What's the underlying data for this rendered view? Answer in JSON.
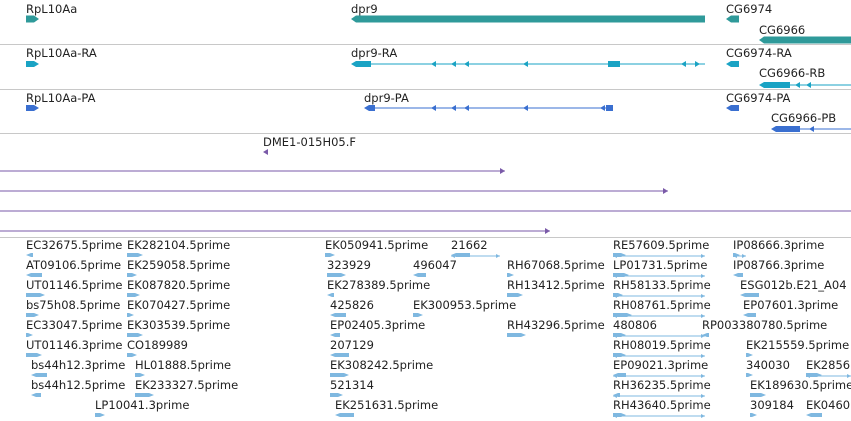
{
  "colors": {
    "gene": "#2f9a9a",
    "mrna": "#1aa3c4",
    "protein": "#3a6fd0",
    "clone": "#7a5aa8",
    "est": "#7fb8e0",
    "separator": "#c8c8c8"
  },
  "gene_track": {
    "features": [
      {
        "label": "RpL10Aa",
        "strand": "+"
      },
      {
        "label": "dpr9",
        "strand": "-"
      },
      {
        "label": "CG6974",
        "strand": "-"
      },
      {
        "label": "CG6966",
        "strand": "-"
      }
    ]
  },
  "mrna_track": {
    "features": [
      {
        "label": "RpL10Aa-RA",
        "strand": "+"
      },
      {
        "label": "dpr9-RA",
        "strand": "-"
      },
      {
        "label": "CG6974-RA",
        "strand": "-"
      },
      {
        "label": "CG6966-RB",
        "strand": "-"
      }
    ]
  },
  "protein_track": {
    "features": [
      {
        "label": "RpL10Aa-PA",
        "strand": "+"
      },
      {
        "label": "dpr9-PA",
        "strand": "-"
      },
      {
        "label": "CG6974-PA",
        "strand": "-"
      },
      {
        "label": "CG6966-PB",
        "strand": "-"
      }
    ]
  },
  "clone_track": {
    "features": [
      {
        "label": "DME1-015H05.F"
      }
    ]
  },
  "est_track": {
    "features": [
      "EC32675.5prime",
      "EK282104.5prime",
      "EK050941.5prime",
      "21662",
      "RE57609.5prime",
      "IP08666.3prime",
      "AT09106.5prime",
      "EK259058.5prime",
      "323929",
      "496047",
      "RH67068.5prime",
      "LP01731.5prime",
      "IP08766.3prime",
      "UT01146.5prime",
      "EK087820.5prime",
      "EK278389.5prime",
      "RH13412.5prime",
      "RH58133.5prime",
      "ESG012b.E21_A04",
      "bs75h08.5prime",
      "EK070427.5prime",
      "425826",
      "EK300953.5prime",
      "RH08761.5prime",
      "EP07601.3prime",
      "EC33047.5prime",
      "EK303539.5prime",
      "EP02405.3prime",
      "RH43296.5prime",
      "480806",
      "RP003380780.5prime",
      "UT01146.3prime",
      "CO189989",
      "207129",
      "RH08019.5prime",
      "EK215559.5prime",
      "bs44h12.3prime",
      "HL01888.5prime",
      "EK308242.5prime",
      "EP09021.3prime",
      "340030",
      "EK2856",
      "bs44h12.5prime",
      "EK233327.5prime",
      "521314",
      "RH36235.5prime",
      "EK189630.5prime",
      "LP10041.3prime",
      "EK251631.5prime",
      "RH43640.5prime",
      "309184",
      "EK0460"
    ]
  }
}
